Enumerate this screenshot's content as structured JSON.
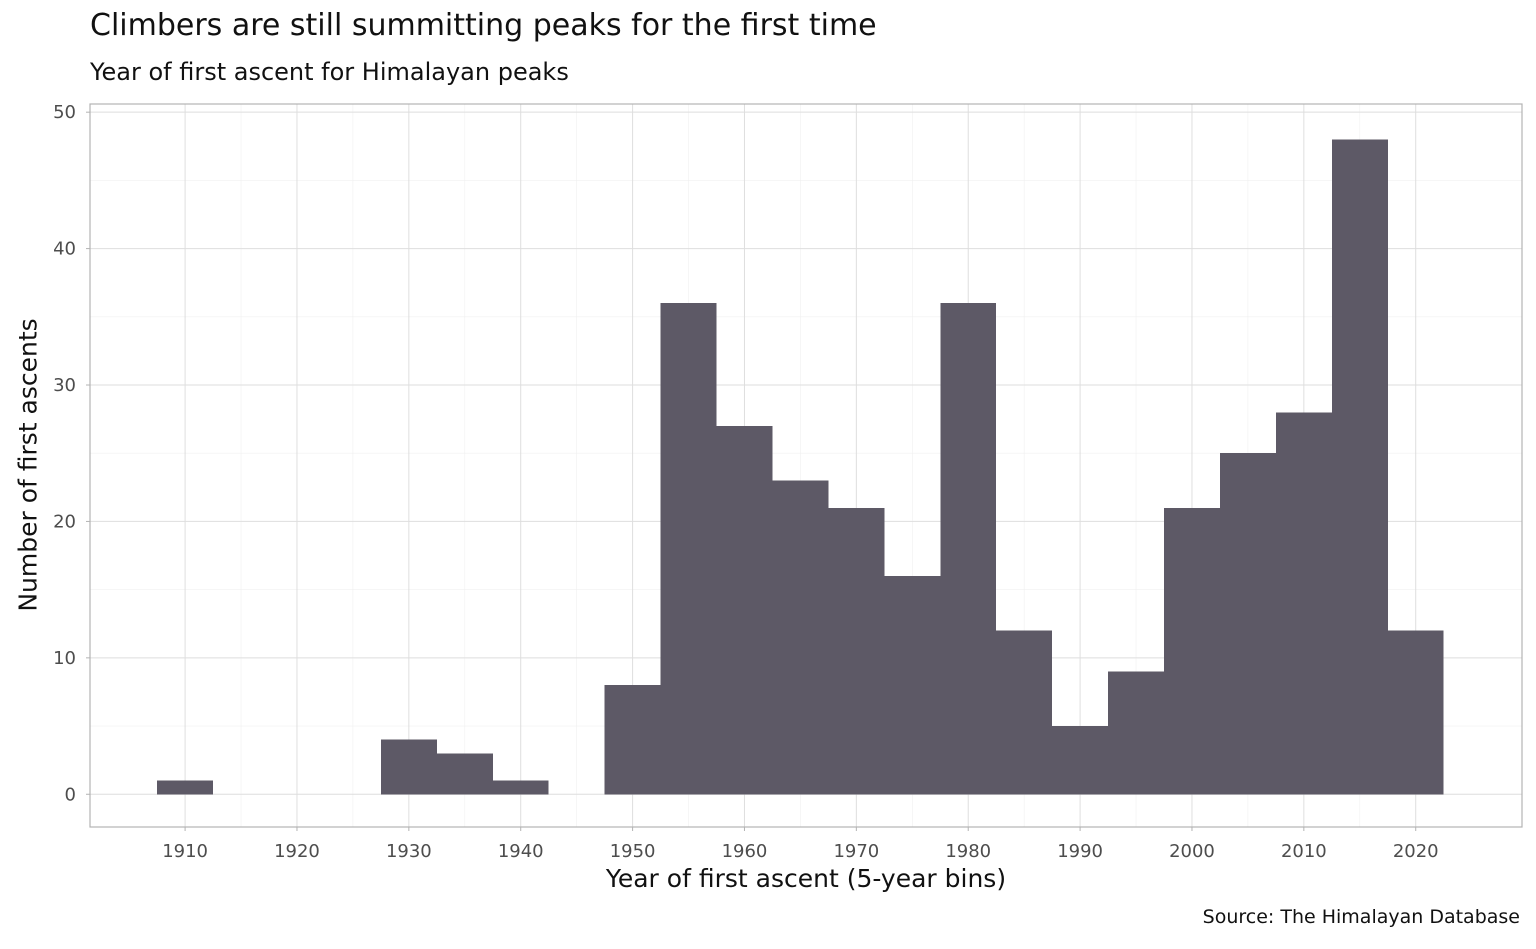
{
  "chart_data": {
    "type": "bar",
    "title": "Climbers are still summitting peaks for the first time",
    "subtitle": "Year of first ascent for Himalayan peaks",
    "caption": "Source: The Himalayan Database",
    "xlabel": "Year of first ascent (5-year bins)",
    "ylabel": "Number of first ascents",
    "bin_width": 5,
    "x_centers": [
      1910,
      1915,
      1920,
      1925,
      1930,
      1935,
      1940,
      1945,
      1950,
      1955,
      1960,
      1965,
      1970,
      1975,
      1980,
      1985,
      1990,
      1995,
      2000,
      2005,
      2010,
      2015,
      2020
    ],
    "values": [
      1,
      0,
      0,
      0,
      4,
      3,
      1,
      0,
      8,
      36,
      27,
      23,
      21,
      16,
      36,
      12,
      5,
      9,
      21,
      25,
      28,
      48,
      12
    ],
    "xlim": [
      1901.5,
      2029.5
    ],
    "ylim": [
      -2.4,
      50.6
    ],
    "x_ticks": [
      1910,
      1920,
      1930,
      1940,
      1950,
      1960,
      1970,
      1980,
      1990,
      2000,
      2010,
      2020
    ],
    "x_tick_labels": [
      "1910",
      "1920",
      "1930",
      "1940",
      "1950",
      "1960",
      "1970",
      "1980",
      "1990",
      "2000",
      "2010",
      "2020"
    ],
    "y_ticks": [
      0,
      10,
      20,
      30,
      40,
      50
    ],
    "y_tick_labels": [
      "0",
      "10",
      "20",
      "30",
      "40",
      "50"
    ],
    "bar_color": "#5d5966",
    "grid": true,
    "legend": "none"
  }
}
